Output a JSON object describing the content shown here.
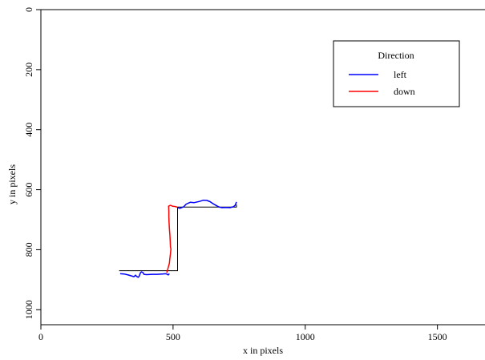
{
  "chart_data": {
    "type": "line",
    "xlabel": "x in pixels",
    "ylabel": "y in pixels",
    "xlim": [
      0,
      1680
    ],
    "ylim": [
      1050,
      0
    ],
    "y_axis_inverted": true,
    "xticks": [
      0,
      500,
      1000,
      1500
    ],
    "yticks": [
      0,
      200,
      400,
      600,
      800,
      1000
    ],
    "grid": false,
    "legend": {
      "title": "Direction",
      "placement": "top-right",
      "entries": [
        {
          "label": "left",
          "color": "#0000ff"
        },
        {
          "label": "down",
          "color": "#ff0000"
        }
      ]
    },
    "reference_path": {
      "color": "#000000",
      "points": [
        [
          296,
          870
        ],
        [
          517,
          870
        ],
        [
          517,
          658
        ],
        [
          740,
          658
        ],
        [
          740,
          650
        ]
      ]
    },
    "series": [
      {
        "name": "left",
        "color": "#0000ff",
        "points": [
          [
            300,
            880
          ],
          [
            315,
            881
          ],
          [
            330,
            884
          ],
          [
            345,
            888
          ],
          [
            352,
            890
          ],
          [
            358,
            885
          ],
          [
            362,
            889
          ],
          [
            368,
            892
          ],
          [
            372,
            888
          ],
          [
            376,
            878
          ],
          [
            380,
            874
          ],
          [
            386,
            876
          ],
          [
            390,
            882
          ],
          [
            400,
            883
          ],
          [
            420,
            882
          ],
          [
            440,
            882
          ],
          [
            460,
            881
          ],
          [
            472,
            880
          ],
          [
            478,
            882
          ],
          [
            482,
            884
          ],
          [
            486,
            880
          ]
        ]
      },
      {
        "name": "down",
        "color": "#ff0000",
        "points": [
          [
            476,
            877
          ],
          [
            481,
            862
          ],
          [
            486,
            845
          ],
          [
            488,
            829
          ],
          [
            490,
            814
          ],
          [
            492,
            798
          ],
          [
            490,
            790
          ],
          [
            489,
            770
          ],
          [
            488,
            750
          ],
          [
            486,
            730
          ],
          [
            485,
            710
          ],
          [
            484,
            690
          ],
          [
            484,
            670
          ],
          [
            483,
            655
          ],
          [
            490,
            652
          ],
          [
            498,
            655
          ],
          [
            506,
            656
          ],
          [
            516,
            658
          ]
        ]
      },
      {
        "name": "left",
        "color": "#0000ff",
        "points": [
          [
            516,
            660
          ],
          [
            526,
            662
          ],
          [
            540,
            657
          ],
          [
            550,
            648
          ],
          [
            565,
            642
          ],
          [
            580,
            643
          ],
          [
            600,
            639
          ],
          [
            615,
            635
          ],
          [
            628,
            636
          ],
          [
            640,
            640
          ],
          [
            650,
            646
          ],
          [
            658,
            650
          ],
          [
            666,
            654
          ],
          [
            675,
            658
          ],
          [
            685,
            660
          ],
          [
            700,
            659
          ],
          [
            715,
            660
          ],
          [
            728,
            657
          ],
          [
            735,
            652
          ],
          [
            738,
            645
          ],
          [
            740,
            641
          ]
        ]
      }
    ]
  }
}
